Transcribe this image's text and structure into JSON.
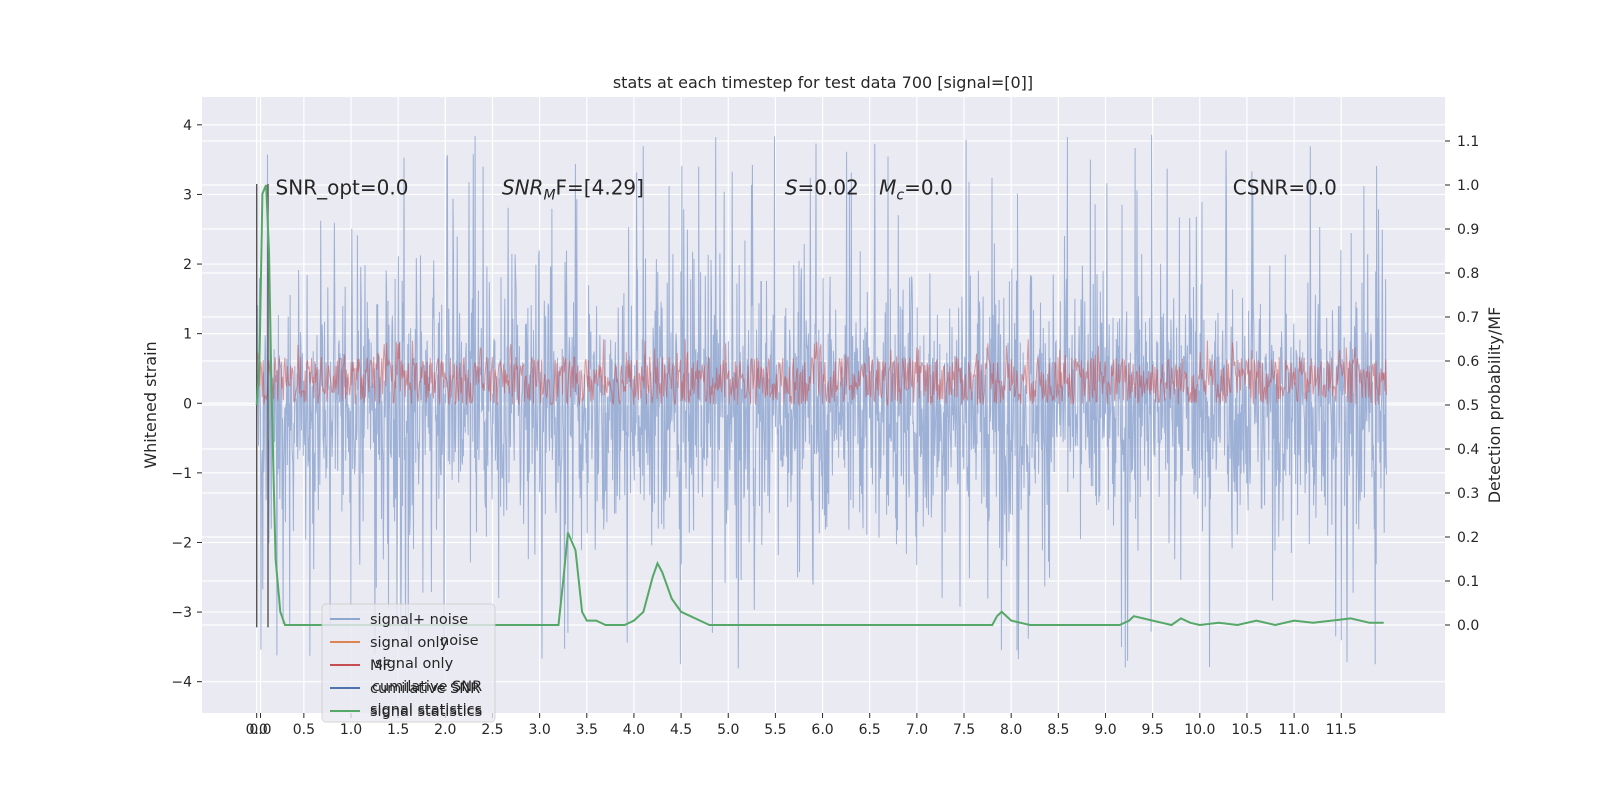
{
  "chart_data": {
    "type": "line",
    "title": "stats at each timestep for test data 700 [signal=[0]]",
    "xlabel": "",
    "ylabel": "Whitened strain",
    "y2label": "Detection probability/MF",
    "xlim": [
      -0.58,
      12.6
    ],
    "ylim": [
      -4.45,
      4.4
    ],
    "y2lim": [
      -0.2,
      1.2
    ],
    "xticks": [
      "0.0",
      "0.0",
      "0.5",
      "1.0",
      "1.5",
      "2.0",
      "2.5",
      "3.0",
      "3.5",
      "4.0",
      "4.5",
      "5.0",
      "5.5",
      "6.0",
      "6.5",
      "7.0",
      "7.5",
      "8.0",
      "8.5",
      "9.0",
      "9.5",
      "10.0",
      "10.5",
      "11.0",
      "11.5"
    ],
    "xtick_values": [
      0.0,
      0.04,
      0.5,
      1.0,
      1.5,
      2.0,
      2.5,
      3.0,
      3.5,
      4.0,
      4.5,
      5.0,
      5.5,
      6.0,
      6.5,
      7.0,
      7.5,
      8.0,
      8.5,
      9.0,
      9.5,
      10.0,
      10.5,
      11.0,
      11.5
    ],
    "yticks": [
      4,
      3,
      2,
      1,
      0,
      -1,
      -2,
      -3,
      -4
    ],
    "ytick_labels": [
      "4",
      "3",
      "2",
      "1",
      "0",
      "−1",
      "−2",
      "−3",
      "−4"
    ],
    "y2ticks": [
      1.1,
      1.0,
      0.9,
      0.8,
      0.7,
      0.6,
      0.5,
      0.4,
      0.3,
      0.2,
      0.1,
      0.0
    ],
    "y2tick_labels": [
      "1.1",
      "1.0",
      "0.9",
      "0.8",
      "0.7",
      "0.6",
      "0.5",
      "0.4",
      "0.3",
      "0.2",
      "0.1",
      "0.0"
    ],
    "grid": true,
    "legend_position": "lower-left",
    "annotations": [
      {
        "text": "SNR_opt=0.0",
        "x": 0.2,
        "y": 3.1
      },
      {
        "text": "SNR",
        "sub": "M",
        "text2": "F=[4.29]",
        "x": 2.6,
        "y": 3.1
      },
      {
        "text": "S",
        "text2": "=0.02",
        "x": 5.6,
        "y": 3.1
      },
      {
        "text": "M",
        "sub": "c",
        "text2": "=0.0",
        "x": 6.6,
        "y": 3.1
      },
      {
        "text": "CSNR=0.0",
        "x": 10.35,
        "y": 3.1
      }
    ],
    "series": [
      {
        "name": "signal+ noise",
        "color": "#8fa6d0",
        "style": "noise",
        "x_range": [
          0.0,
          11.98
        ],
        "y_range": [
          -4.1,
          4.03
        ]
      },
      {
        "name": "signal only",
        "color": "#dd8452",
        "style": "flat",
        "values_note": ""
      },
      {
        "name": "MF",
        "color": "#c44e52",
        "style": "band",
        "x_range": [
          0.0,
          11.98
        ],
        "y2_range": [
          0.5,
          0.65
        ]
      },
      {
        "name": "cumilative SNR",
        "color": "#4c72b0",
        "style": "flat"
      },
      {
        "name": "signal statistics",
        "color": "#55a868",
        "style": "line",
        "axis": "y2",
        "x": [
          0.0,
          0.03,
          0.06,
          0.1,
          0.13,
          0.16,
          0.2,
          0.25,
          0.3,
          0.6,
          1.0,
          2.0,
          2.5,
          3.0,
          3.2,
          3.25,
          3.3,
          3.38,
          3.45,
          3.5,
          3.6,
          3.7,
          3.8,
          3.9,
          4.0,
          4.1,
          4.2,
          4.25,
          4.3,
          4.4,
          4.5,
          4.6,
          4.7,
          4.8,
          5.0,
          5.5,
          6.0,
          7.0,
          7.7,
          7.8,
          7.85,
          7.9,
          8.0,
          8.2,
          9.0,
          9.15,
          9.25,
          9.3,
          9.4,
          9.5,
          9.6,
          9.7,
          9.8,
          9.9,
          10.0,
          10.2,
          10.4,
          10.6,
          10.8,
          11.0,
          11.2,
          11.4,
          11.6,
          11.8,
          11.95
        ],
        "y": [
          0.5,
          0.6,
          0.98,
          1.0,
          0.85,
          0.5,
          0.15,
          0.03,
          0.0,
          0.0,
          0.0,
          0.0,
          0.0,
          0.0,
          0.0,
          0.1,
          0.21,
          0.17,
          0.03,
          0.01,
          0.01,
          0.0,
          0.0,
          0.0,
          0.01,
          0.03,
          0.11,
          0.14,
          0.12,
          0.06,
          0.03,
          0.02,
          0.01,
          0.0,
          0.0,
          0.0,
          0.0,
          0.0,
          0.0,
          0.0,
          0.02,
          0.03,
          0.01,
          0.0,
          0.0,
          0.0,
          0.01,
          0.02,
          0.015,
          0.01,
          0.005,
          0.0,
          0.015,
          0.005,
          0.0,
          0.005,
          0.0,
          0.01,
          0.0,
          0.01,
          0.005,
          0.01,
          0.015,
          0.005,
          0.005
        ]
      },
      {
        "name": "",
        "color": "#555555",
        "style": "vline",
        "x": [
          0.0,
          0.12
        ]
      }
    ],
    "legend": [
      "signal+ noise",
      "signal only",
      "MF",
      "cumilative SNR",
      "signal statistics"
    ],
    "legend_ghost": [
      "noise",
      "signal only",
      "cumilative SNR",
      "signal statistics"
    ]
  }
}
